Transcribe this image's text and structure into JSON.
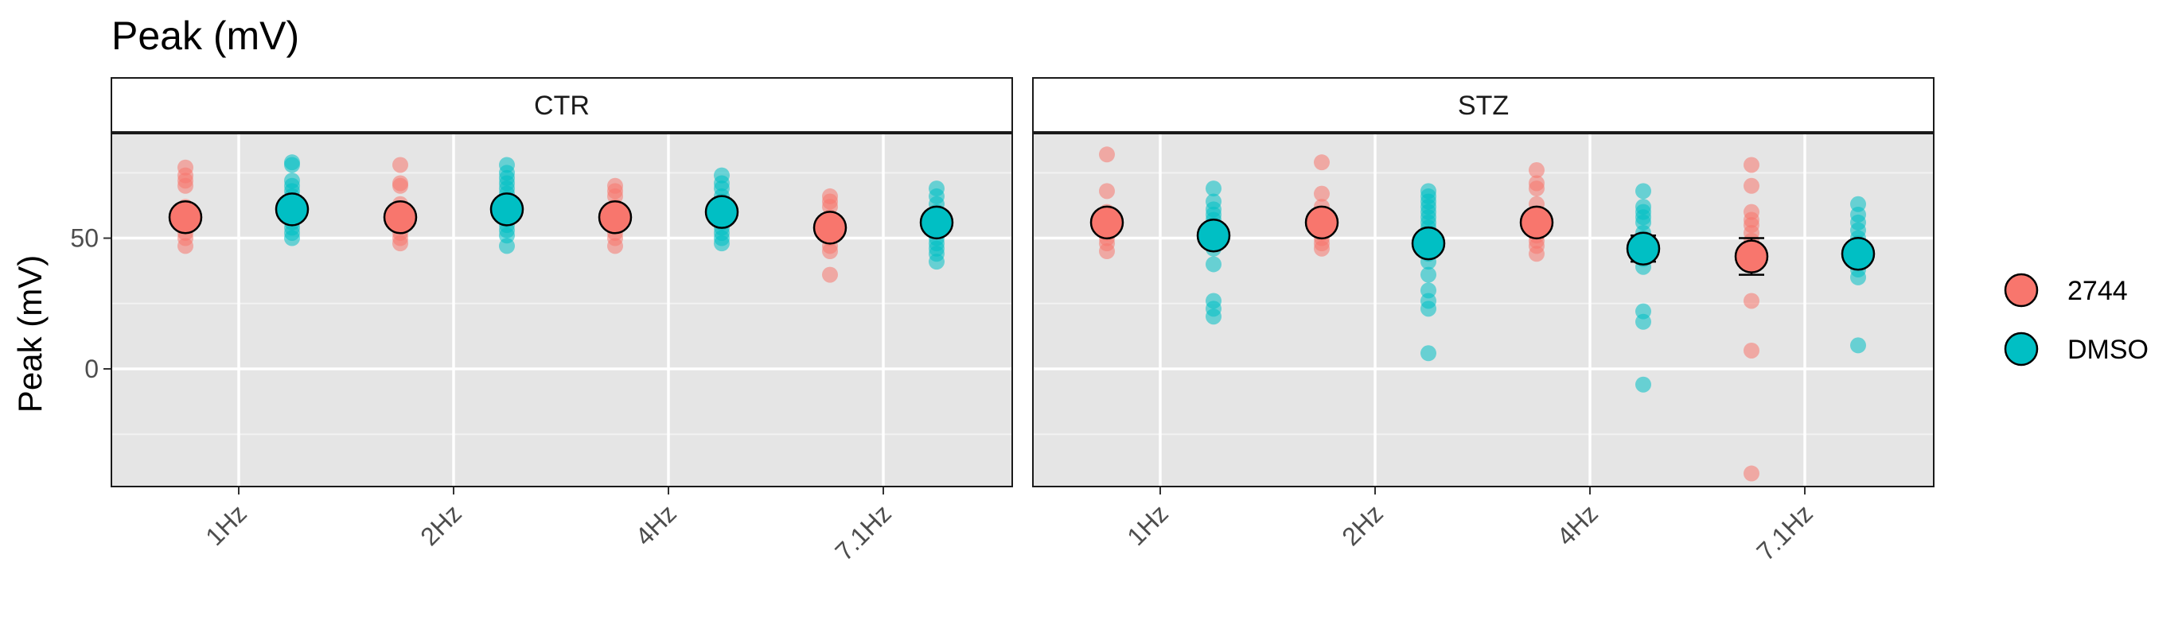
{
  "chart_data": {
    "type": "scatter",
    "title": "Peak (mV)",
    "ylabel": "Peak (mV)",
    "xlabel": "",
    "ylim": [
      -45,
      90
    ],
    "yticks": [
      0,
      50
    ],
    "categories": [
      "1Hz",
      "2Hz",
      "4Hz",
      "7.1Hz"
    ],
    "legend_position": "right",
    "grid": true,
    "series": [
      {
        "name": "2744",
        "color": "#F8766D"
      },
      {
        "name": "DMSO",
        "color": "#00BFC4"
      }
    ],
    "panels": [
      {
        "label": "CTR",
        "groups": [
          {
            "category": "1Hz",
            "series": "2744",
            "mean": 58,
            "sem": 2,
            "points": [
              77,
              74,
              72,
              70,
              62,
              60,
              58,
              55,
              52,
              50,
              47
            ]
          },
          {
            "category": "1Hz",
            "series": "DMSO",
            "mean": 61,
            "sem": 1.5,
            "points": [
              79,
              78,
              72,
              70,
              68,
              66,
              64,
              62,
              60,
              58,
              56,
              54,
              52,
              50
            ]
          },
          {
            "category": "2Hz",
            "series": "2744",
            "mean": 58,
            "sem": 2,
            "points": [
              78,
              71,
              70,
              63,
              61,
              58,
              55,
              52,
              50,
              48
            ]
          },
          {
            "category": "2Hz",
            "series": "DMSO",
            "mean": 61,
            "sem": 1.5,
            "points": [
              78,
              75,
              73,
              71,
              69,
              67,
              65,
              63,
              61,
              59,
              57,
              55,
              53,
              51,
              47
            ]
          },
          {
            "category": "4Hz",
            "series": "2744",
            "mean": 58,
            "sem": 2,
            "points": [
              70,
              68,
              66,
              62,
              60,
              57,
              55,
              52,
              50,
              47
            ]
          },
          {
            "category": "4Hz",
            "series": "DMSO",
            "mean": 60,
            "sem": 1.5,
            "points": [
              74,
              71,
              69,
              66,
              64,
              62,
              60,
              58,
              56,
              54,
              52,
              50,
              48
            ]
          },
          {
            "category": "7.1Hz",
            "series": "2744",
            "mean": 54,
            "sem": 2.5,
            "points": [
              66,
              64,
              62,
              58,
              55,
              52,
              50,
              47,
              45,
              36
            ]
          },
          {
            "category": "7.1Hz",
            "series": "DMSO",
            "mean": 56,
            "sem": 2,
            "points": [
              69,
              66,
              63,
              60,
              58,
              56,
              53,
              50,
              48,
              46,
              44,
              41
            ]
          }
        ]
      },
      {
        "label": "STZ",
        "groups": [
          {
            "category": "1Hz",
            "series": "2744",
            "mean": 56,
            "sem": 2,
            "points": [
              82,
              68,
              60,
              58,
              54,
              52,
              50,
              48,
              45
            ]
          },
          {
            "category": "1Hz",
            "series": "DMSO",
            "mean": 51,
            "sem": 4,
            "points": [
              69,
              64,
              61,
              59,
              57,
              55,
              52,
              50,
              46,
              40,
              26,
              23,
              20
            ]
          },
          {
            "category": "2Hz",
            "series": "2744",
            "mean": 56,
            "sem": 2,
            "points": [
              79,
              67,
              62,
              58,
              55,
              52,
              50,
              48,
              46
            ]
          },
          {
            "category": "2Hz",
            "series": "DMSO",
            "mean": 48,
            "sem": 3,
            "points": [
              68,
              66,
              64,
              62,
              60,
              58,
              56,
              54,
              52,
              50,
              48,
              46,
              44,
              41,
              36,
              30,
              26,
              23,
              6
            ]
          },
          {
            "category": "4Hz",
            "series": "2744",
            "mean": 56,
            "sem": 2,
            "points": [
              76,
              71,
              69,
              63,
              59,
              57,
              54,
              51,
              49,
              47,
              44
            ]
          },
          {
            "category": "4Hz",
            "series": "DMSO",
            "mean": 46,
            "sem": 5,
            "points": [
              68,
              62,
              60,
              58,
              56,
              52,
              50,
              48,
              45,
              42,
              39,
              22,
              18,
              -6
            ]
          },
          {
            "category": "7.1Hz",
            "series": "2744",
            "mean": 43,
            "sem": 7,
            "points": [
              78,
              70,
              60,
              57,
              55,
              52,
              49,
              26,
              7,
              -40
            ]
          },
          {
            "category": "7.1Hz",
            "series": "DMSO",
            "mean": 44,
            "sem": 3,
            "points": [
              63,
              59,
              56,
              53,
              50,
              48,
              46,
              44,
              41,
              38,
              35,
              9
            ]
          }
        ]
      }
    ]
  }
}
